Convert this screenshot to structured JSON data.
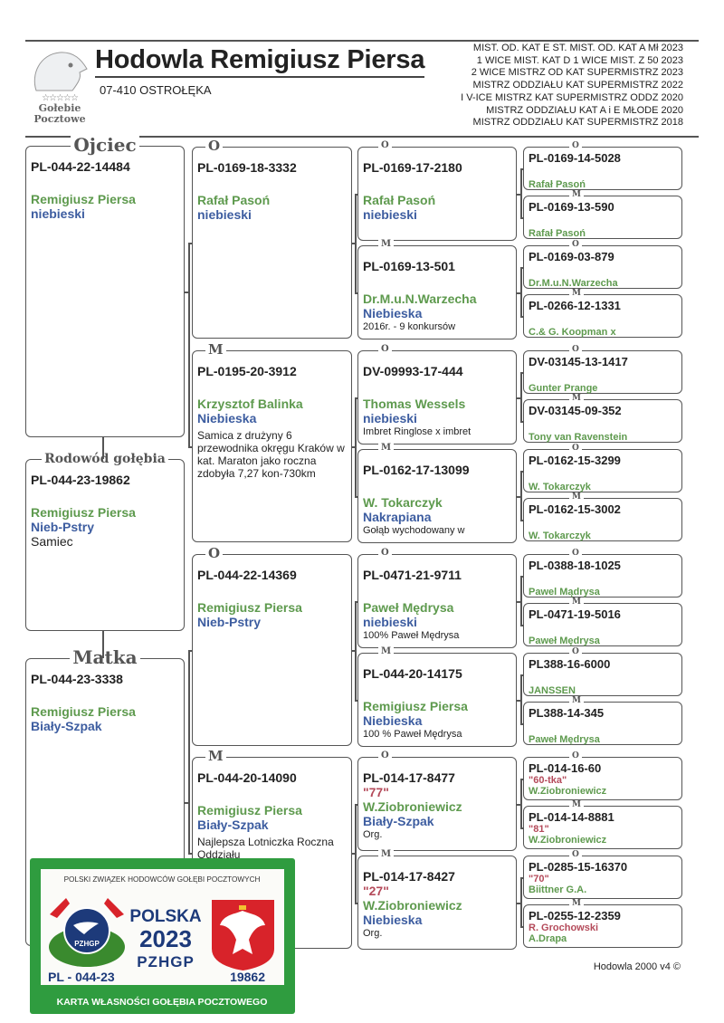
{
  "header": {
    "logo_stars": "☆☆☆☆☆",
    "logo_line1": "Gołebie",
    "logo_line2": "Pocztowe",
    "title": "Hodowla Remigiusz Piersa",
    "address": "07-410 OSTROŁĘKA",
    "achievements": [
      "MIST. OD. KAT  E ST. MIST. OD. KAT A  Mł 2023",
      "1 WICE MIST. KAT D 1 WICE MIST. Z 50 2023",
      "2 WICE MISTRZ OD KAT SUPERMISTRZ 2023",
      "MISTRZ ODDZIAŁU KAT SUPERMISTRZ 2022",
      "I V-ICE MISTRZ KAT SUPERMISTRZ ODDZ 2020",
      "MISTRZ ODDZIAŁU KAT  A i E MŁODE 2020",
      "MISTRZ ODDZIAŁU KAT SUPERMISTRZ 2018"
    ]
  },
  "gen1": [
    {
      "label": "Ojciec",
      "ring": "PL-044-22-14484",
      "owner": "Remigiusz Piersa",
      "color": "niebieski"
    },
    {
      "label": "Rodowód gołębia",
      "ring": "PL-044-23-19862",
      "owner": "Remigiusz Piersa",
      "color": "Nieb-Pstry",
      "note": "Samiec"
    },
    {
      "label": "Matka",
      "ring": "PL-044-23-3338",
      "owner": "Remigiusz Piersa",
      "color": "Biały-Szpak"
    }
  ],
  "gen2": [
    {
      "label": "O",
      "ring": "PL-0169-18-3332",
      "owner": "Rafał Pasoń",
      "color": "niebieski"
    },
    {
      "label": "M",
      "ring": "PL-0195-20-3912",
      "owner": "Krzysztof Balinka",
      "color": "Niebieska",
      "note": "Samica z drużyny 6 przewodnika okręgu Kraków w kat. Maraton jako roczna zdobyła 7,27 kon-730km"
    },
    {
      "label": "O",
      "ring": "PL-044-22-14369",
      "owner": "Remigiusz Piersa",
      "color": "Nieb-Pstry"
    },
    {
      "label": "M",
      "ring": "PL-044-20-14090",
      "owner": "Remigiusz Piersa",
      "color": "Biały-Szpak",
      "note": "Najlepsza Lotniczka Roczna Oddziału"
    }
  ],
  "gen3": [
    {
      "label": "O",
      "ring": "PL-0169-17-2180",
      "owner": "Rafał Pasoń",
      "color": "niebieski"
    },
    {
      "label": "M",
      "ring": "PL-0169-13-501",
      "owner": "Dr.M.u.N.Warzecha",
      "color": "Niebieska",
      "note": "2016r. - 9 konkursów"
    },
    {
      "label": "O",
      "ring": "DV-09993-17-444",
      "owner": "Thomas Wessels",
      "color": "niebieski",
      "note": "Imbret Ringlose x imbret"
    },
    {
      "label": "M",
      "ring": "PL-0162-17-13099",
      "owner": "W. Tokarczyk",
      "color": "Nakrapiana",
      "note": "Gołąb wychodowany w"
    },
    {
      "label": "O",
      "ring": "PL-0471-21-9711",
      "owner": "Paweł Mędrysa",
      "color": "niebieski",
      "note": "100% Paweł Mędrysa"
    },
    {
      "label": "M",
      "ring": "PL-044-20-14175",
      "owner": "Remigiusz Piersa",
      "color": "Niebieska",
      "note": "100 % Paweł Mędrysa"
    },
    {
      "label": "O",
      "ring": "PL-014-17-8477",
      "nick": "\"77\"",
      "owner": "W.Ziobroniewicz",
      "color": "Biały-Szpak",
      "note": "Org."
    },
    {
      "label": "M",
      "ring": "PL-014-17-8427",
      "nick": "\"27\"",
      "owner": "W.Ziobroniewicz",
      "color": "Niebieska",
      "note": "Org."
    }
  ],
  "gen4": [
    {
      "label": "O",
      "ring": "PL-0169-14-5028",
      "owner": "Rafał Pasoń"
    },
    {
      "label": "M",
      "ring": "PL-0169-13-590",
      "owner": "Rafał Pasoń"
    },
    {
      "label": "O",
      "ring": "PL-0169-03-879",
      "owner": "Dr.M.u.N.Warzecha"
    },
    {
      "label": "M",
      "ring": "PL-0266-12-1331",
      "owner": "C.& G. Koopman x"
    },
    {
      "label": "O",
      "ring": "DV-03145-13-1417",
      "owner": "Gunter Prange"
    },
    {
      "label": "M",
      "ring": "DV-03145-09-352",
      "owner": "Tony van Ravenstein"
    },
    {
      "label": "O",
      "ring": "PL-0162-15-3299",
      "owner": "W. Tokarczyk"
    },
    {
      "label": "M",
      "ring": "PL-0162-15-3002",
      "owner": "W. Tokarczyk"
    },
    {
      "label": "O",
      "ring": "PL-0388-18-1025",
      "owner": "Pawel Mądrysa"
    },
    {
      "label": "M",
      "ring": "PL-0471-19-5016",
      "owner": "Paweł Mędrysa"
    },
    {
      "label": "O",
      "ring": "PL388-16-6000",
      "owner": "JANSSEN"
    },
    {
      "label": "M",
      "ring": "PL388-14-345",
      "owner": "Paweł Mędrysa"
    },
    {
      "label": "O",
      "ring": "PL-014-16-60",
      "nick": "\"60-tka\"",
      "owner": "W.Ziobroniewicz"
    },
    {
      "label": "M",
      "ring": "PL-014-14-8881",
      "nick": "\"81\"",
      "owner": "W.Ziobroniewicz"
    },
    {
      "label": "O",
      "ring": "PL-0285-15-16370",
      "nick": "\"70\"",
      "owner": "Biittner G.A."
    },
    {
      "label": "M",
      "ring": "PL-0255-12-2359",
      "nick": "R. Grochowski",
      "owner": "A.Drapa"
    }
  ],
  "card": {
    "org": "POLSKI ZWIĄZEK HODOWCÓW GOŁĘBI POCZTOWYCH",
    "logo_text": "PZHGP",
    "country": "POLSKA",
    "year": "2023",
    "brand": "PZHGP",
    "ring_prefix": "PL - 044-23",
    "ring_number": "19862",
    "footer": "KARTA  WŁASNOŚCI GOŁĘBIA POCZTOWEGO",
    "green": "#2f9c3f",
    "navy": "#1d3a7a",
    "red": "#d8232a"
  },
  "footer": "Hodowla 2000 v4 ©",
  "colors": {
    "owner": "#5e9a4e",
    "color": "#3d5da0",
    "nick": "#b44a5a"
  }
}
